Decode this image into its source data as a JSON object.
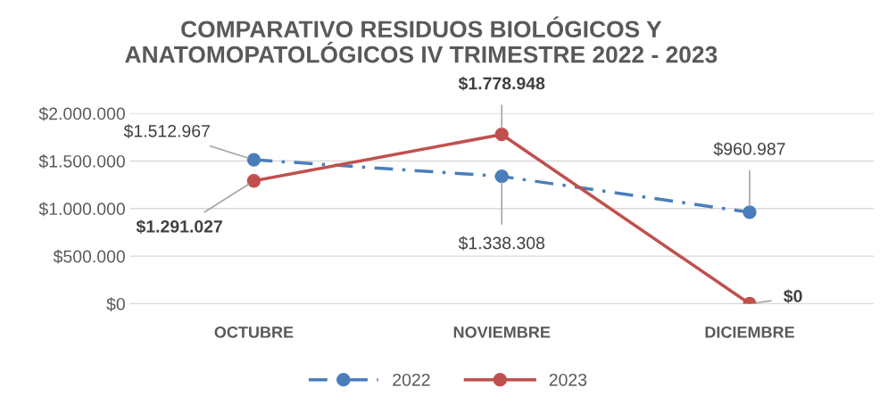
{
  "chart_data": {
    "type": "line",
    "title": "COMPARATIVO RESIDUOS BIOLÓGICOS Y\nANATOMOPATOLÓGICOS IV TRIMESTRE 2022 - 2023",
    "categories": [
      "OCTUBRE",
      "NOVIEMBRE",
      "DICIEMBRE"
    ],
    "series": [
      {
        "name": "2022",
        "color": "#4a7ebb",
        "values": [
          1512967,
          1338308,
          960987
        ],
        "value_labels": [
          "$1.512.967",
          "$1.338.308",
          "$960.987"
        ],
        "line_style": "dashed"
      },
      {
        "name": "2023",
        "color": "#c0504d",
        "values": [
          1291027,
          1778948,
          0
        ],
        "value_labels": [
          "$1.291.027",
          "$1.778.948",
          "$0"
        ],
        "line_style": "solid"
      }
    ],
    "ylim": [
      0,
      2000000
    ],
    "yticks": [
      {
        "value": 0,
        "label": "$0"
      },
      {
        "value": 500000,
        "label": "$500.000"
      },
      {
        "value": 1000000,
        "label": "$1.000.000"
      },
      {
        "value": 1500000,
        "label": "$1.500.000"
      },
      {
        "value": 2000000,
        "label": "$2.000.000"
      }
    ],
    "grid": "y",
    "legend": "bottom",
    "marker": "circle"
  }
}
